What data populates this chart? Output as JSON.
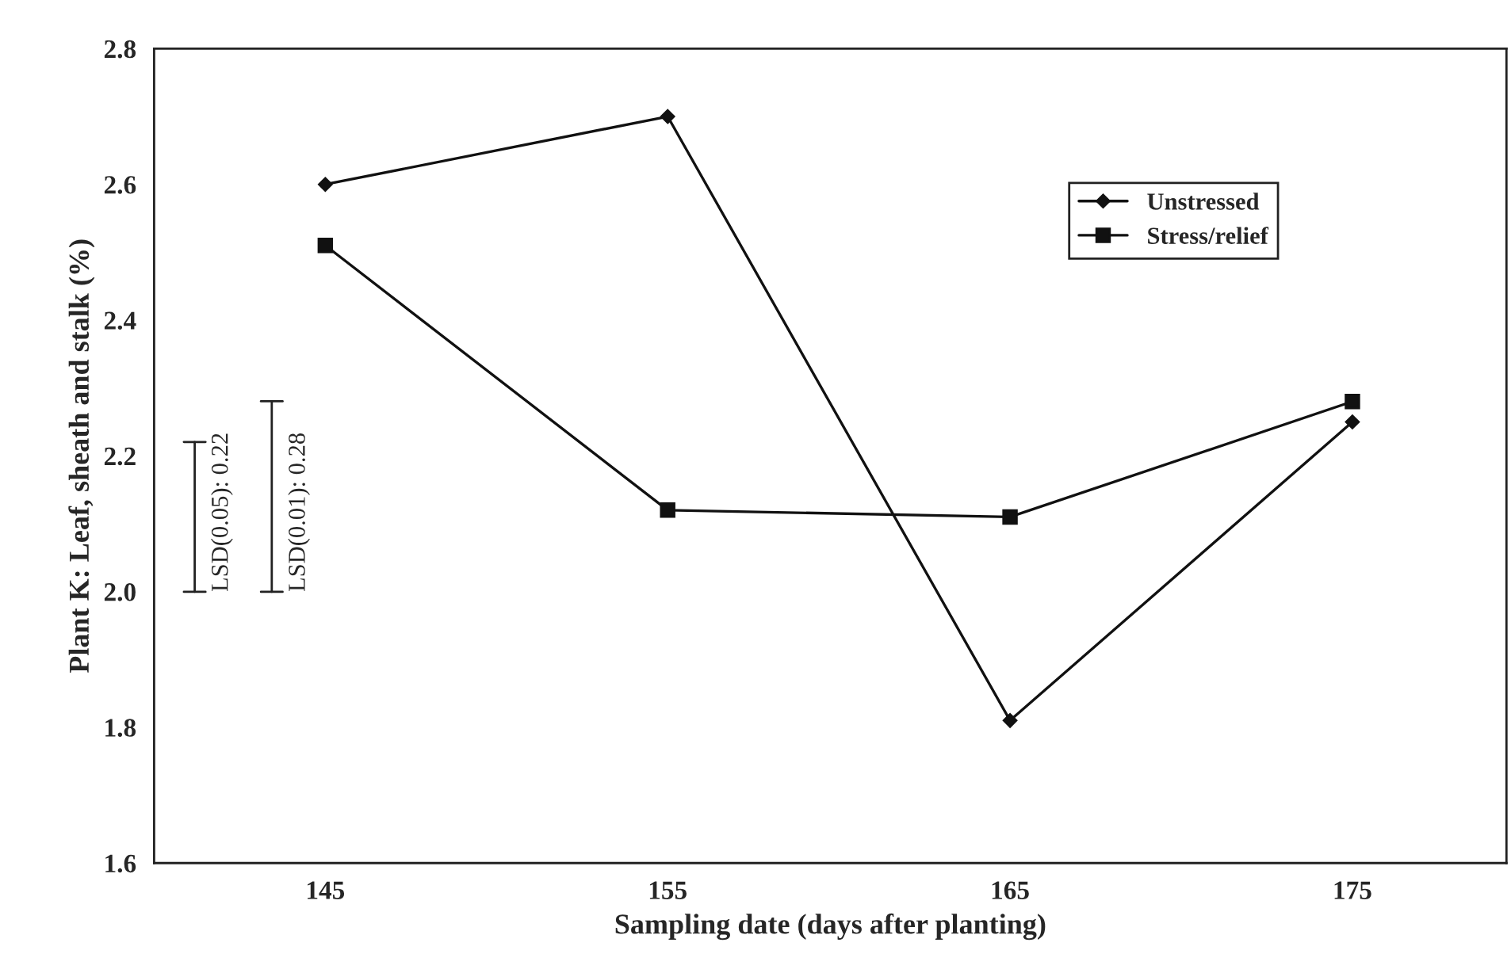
{
  "chart_data": {
    "type": "line",
    "xlabel": "Sampling date (days after planting)",
    "ylabel": "Plant K: Leaf, sheath and stalk (%)",
    "x": [
      145,
      155,
      165,
      175
    ],
    "series": [
      {
        "name": "Unstressed",
        "color": "#111111",
        "marker": "diamond",
        "values": [
          2.6,
          2.7,
          1.81,
          2.25
        ]
      },
      {
        "name": "Stress/relief",
        "color": "#111111",
        "marker": "square",
        "values": [
          2.51,
          2.12,
          2.11,
          2.28
        ]
      }
    ],
    "annotations": [
      "LSD(0.05): 0.22",
      "LSD(0.01): 0.28"
    ],
    "xlim": [
      140,
      179.5
    ],
    "ylim": [
      1.6,
      2.8
    ],
    "xticks": [
      145,
      155,
      165,
      175
    ],
    "yticks": [
      1.6,
      1.8,
      {
        "value": 2.0,
        "label": "2.0"
      },
      2.2,
      2.4,
      2.6,
      2.8
    ],
    "grid": false,
    "legend": "top right",
    "line_style": "solid"
  }
}
